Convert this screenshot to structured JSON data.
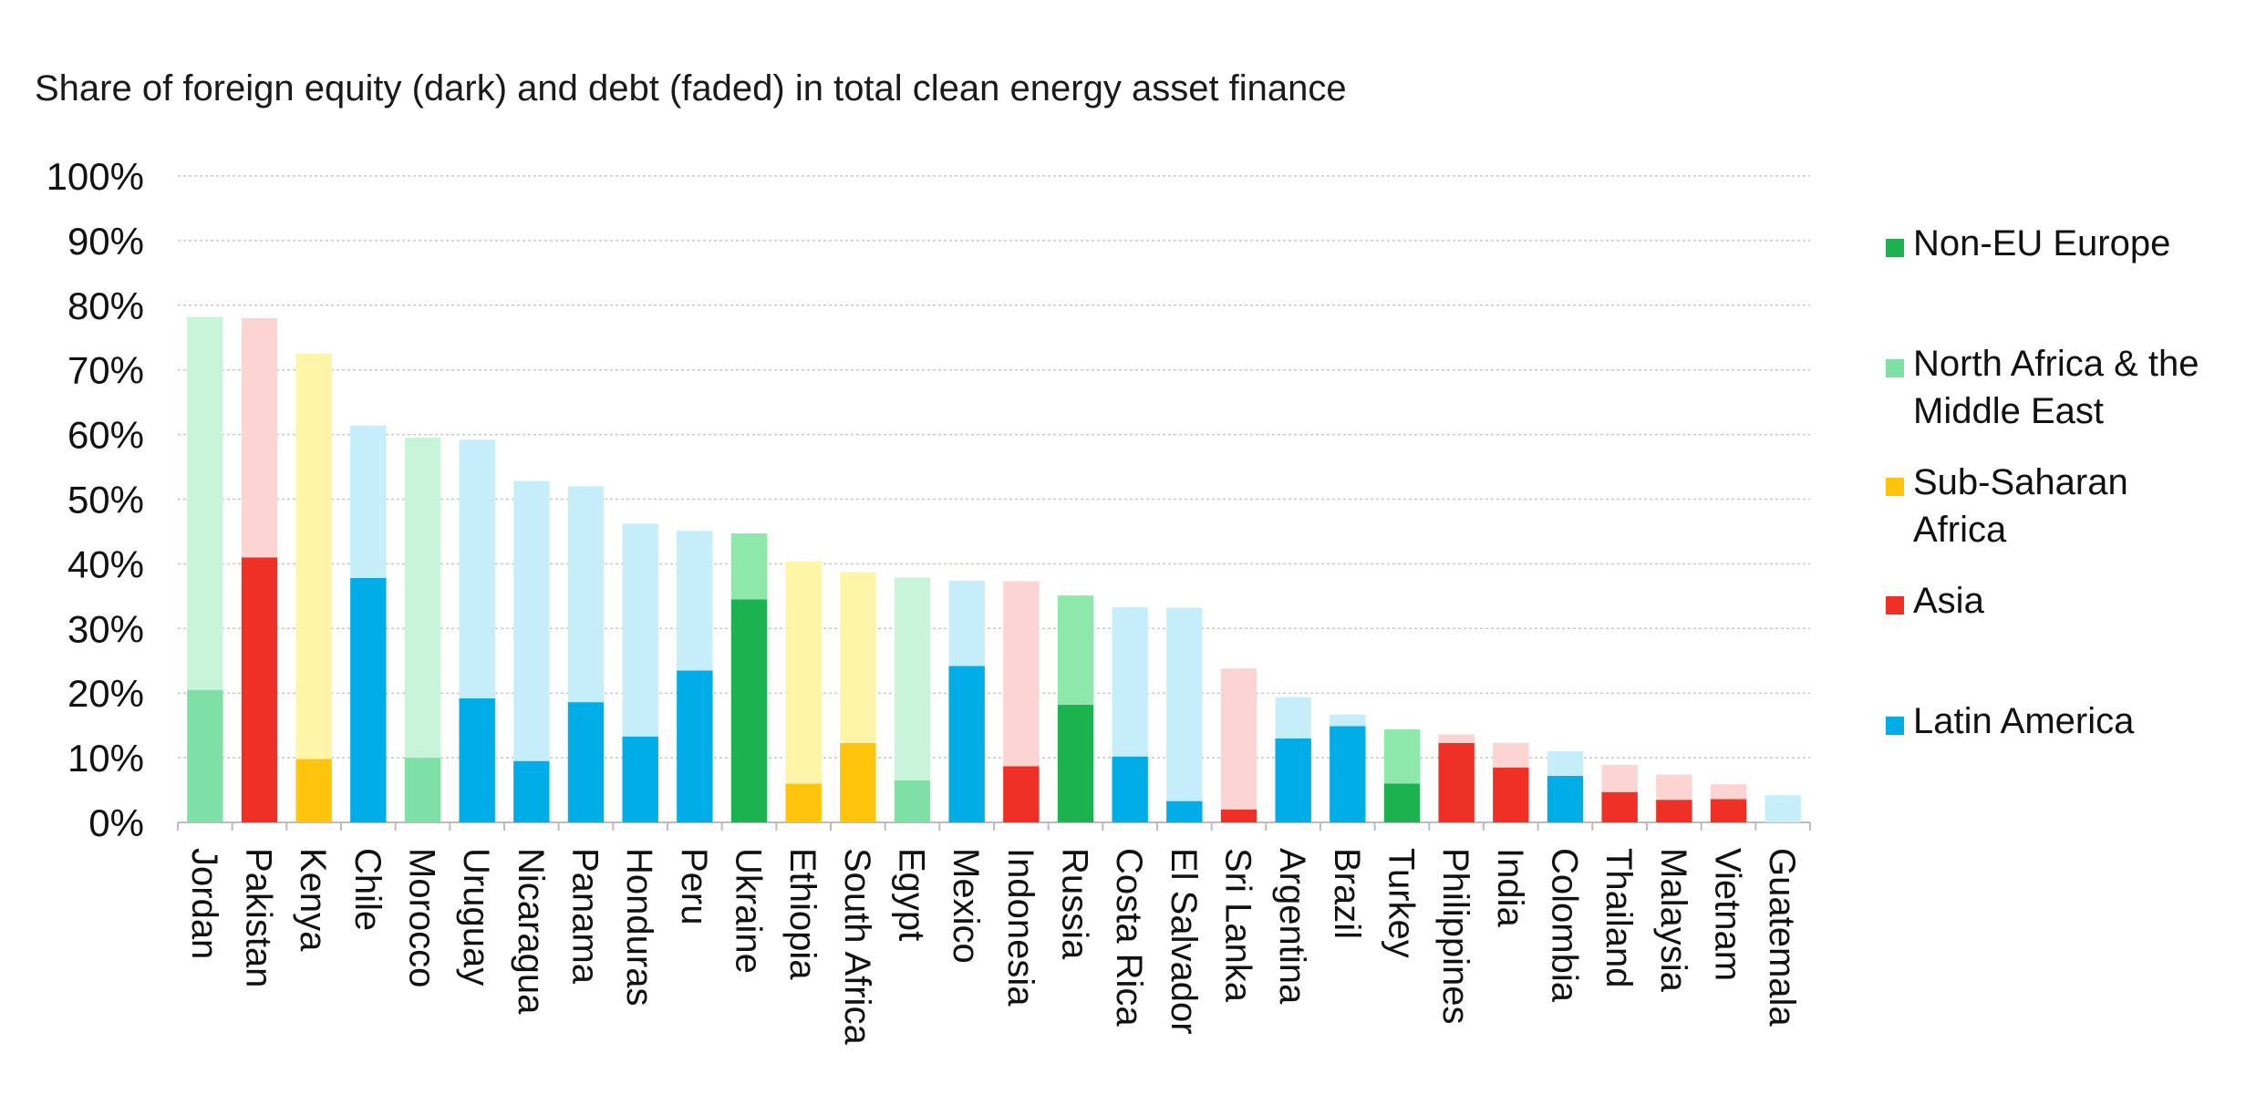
{
  "chart_data": {
    "type": "bar",
    "title": "Share of foreign equity (dark) and debt (faded) in total clean energy asset finance",
    "xlabel": "",
    "ylabel": "",
    "ylim": [
      0,
      100
    ],
    "yticks": [
      "0%",
      "10%",
      "20%",
      "30%",
      "40%",
      "50%",
      "60%",
      "70%",
      "80%",
      "90%",
      "100%"
    ],
    "grid": true,
    "legend_placement": "right",
    "regions": [
      {
        "name": "Non-EU Europe",
        "dark": "#1bb24f",
        "faded": "#8ee8ab"
      },
      {
        "name": "North Africa & the Middle East",
        "dark": "#7fe0a6",
        "faded": "#c8f5da"
      },
      {
        "name": "Sub-Saharan Africa",
        "dark": "#ffc40b",
        "faded": "#fff5a8"
      },
      {
        "name": "Asia",
        "dark": "#ee3124",
        "faded": "#fcd4d2"
      },
      {
        "name": "Latin America",
        "dark": "#00ade6",
        "faded": "#c6eefa"
      }
    ],
    "categories": [
      "Jordan",
      "Pakistan",
      "Kenya",
      "Chile",
      "Morocco",
      "Uruguay",
      "Nicaragua",
      "Panama",
      "Honduras",
      "Peru",
      "Ukraine",
      "Ethiopia",
      "South Africa",
      "Egypt",
      "Mexico",
      "Indonesia",
      "Russia",
      "Costa Rica",
      "El Salvador",
      "Sri Lanka",
      "Argentina",
      "Brazil",
      "Turkey",
      "Philippines",
      "India",
      "Colombia",
      "Thailand",
      "Malaysia",
      "Vietnam",
      "Guatemala"
    ],
    "region_of_category": [
      "North Africa & the Middle East",
      "Asia",
      "Sub-Saharan Africa",
      "Latin America",
      "North Africa & the Middle East",
      "Latin America",
      "Latin America",
      "Latin America",
      "Latin America",
      "Latin America",
      "Non-EU Europe",
      "Sub-Saharan Africa",
      "Sub-Saharan Africa",
      "North Africa & the Middle East",
      "Latin America",
      "Asia",
      "Non-EU Europe",
      "Latin America",
      "Latin America",
      "Asia",
      "Latin America",
      "Latin America",
      "Non-EU Europe",
      "Asia",
      "Asia",
      "Latin America",
      "Asia",
      "Asia",
      "Asia",
      "Latin America"
    ],
    "series": [
      {
        "name": "equity",
        "values": [
          20.5,
          41,
          9.8,
          37.8,
          10,
          19.2,
          9.5,
          18.6,
          13.3,
          23.5,
          34.5,
          6,
          12.3,
          6.5,
          24.2,
          8.7,
          18.2,
          10.2,
          3.3,
          2,
          13,
          14.9,
          6,
          12.3,
          8.5,
          7.2,
          4.7,
          3.5,
          3.6,
          0
        ]
      },
      {
        "name": "debt",
        "values": [
          57.7,
          37,
          62.7,
          23.6,
          49.5,
          40,
          43.3,
          33.4,
          32.9,
          21.6,
          10.2,
          34.4,
          26.4,
          31.4,
          13.2,
          28.6,
          16.9,
          23.1,
          29.9,
          21.8,
          6.4,
          1.8,
          8.4,
          1.3,
          3.8,
          3.8,
          4.2,
          3.9,
          2.3,
          4.2
        ]
      }
    ]
  }
}
